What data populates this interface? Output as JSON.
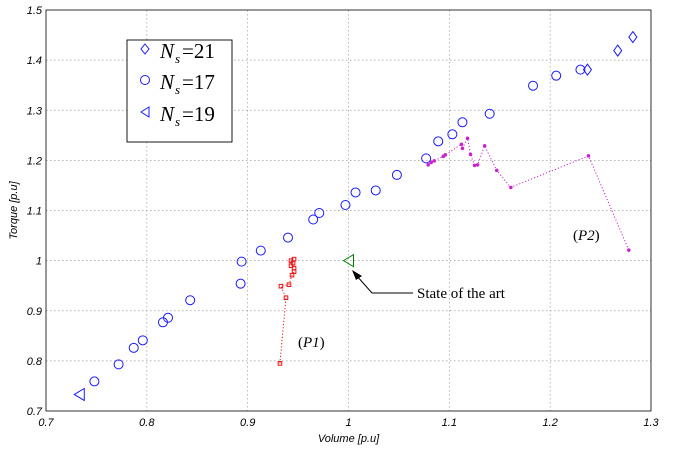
{
  "chart_data": {
    "type": "scatter",
    "xlabel": "Volume [p.u]",
    "ylabel": "Torque [p.u]",
    "xlim": [
      0.7,
      1.3
    ],
    "ylim": [
      0.7,
      1.5
    ],
    "xticks": [
      "0.7",
      "0.8",
      "0.9",
      "1",
      "1.1",
      "1.2",
      "1.3"
    ],
    "yticks": [
      "0.7",
      "0.8",
      "0.9",
      "1",
      "1.1",
      "1.2",
      "1.3",
      "1.4",
      "1.5"
    ],
    "grid": true,
    "legend": {
      "placement": "top-left",
      "entries": [
        {
          "marker": "diamond",
          "symbol": "N",
          "sub": "s",
          "rest": "=21"
        },
        {
          "marker": "circle",
          "symbol": "N",
          "sub": "s",
          "rest": "=17"
        },
        {
          "marker": "triangle-left",
          "symbol": "N",
          "sub": "s",
          "rest": "=19"
        }
      ]
    },
    "colors": {
      "blue": "#1a1aff",
      "red": "#ee1111",
      "magenta": "#cc22cc",
      "green": "#008000"
    },
    "series": [
      {
        "marker": "diamond",
        "color": "#1a1aff",
        "points": [
          [
            1.237,
            1.381
          ],
          [
            1.267,
            1.419
          ],
          [
            1.282,
            1.446
          ]
        ]
      },
      {
        "marker": "circle",
        "color": "#1a1aff",
        "points": [
          [
            0.748,
            0.759
          ],
          [
            0.772,
            0.793
          ],
          [
            0.787,
            0.826
          ],
          [
            0.796,
            0.841
          ],
          [
            0.816,
            0.877
          ],
          [
            0.821,
            0.886
          ],
          [
            0.843,
            0.921
          ],
          [
            0.893,
            0.954
          ],
          [
            0.894,
            0.998
          ],
          [
            0.913,
            1.02
          ],
          [
            0.94,
            1.046
          ],
          [
            0.965,
            1.082
          ],
          [
            0.971,
            1.095
          ],
          [
            0.997,
            1.111
          ],
          [
            1.007,
            1.136
          ],
          [
            1.027,
            1.14
          ],
          [
            1.048,
            1.171
          ],
          [
            1.077,
            1.204
          ],
          [
            1.089,
            1.238
          ],
          [
            1.103,
            1.252
          ],
          [
            1.113,
            1.276
          ],
          [
            1.14,
            1.293
          ],
          [
            1.183,
            1.349
          ],
          [
            1.206,
            1.369
          ],
          [
            1.23,
            1.381
          ]
        ]
      },
      {
        "marker": "triangle-left",
        "color": "#1a1aff",
        "points": [
          [
            0.733,
            0.733
          ]
        ]
      },
      {
        "marker": "triangle-left",
        "color": "#008000",
        "points": [
          [
            1.0,
            1.0
          ]
        ]
      },
      {
        "marker": "square-small",
        "color": "#ee1111",
        "line": "dotted",
        "points": [
          [
            0.932,
            0.795
          ],
          [
            0.938,
            0.926
          ],
          [
            0.933,
            0.949
          ],
          [
            0.941,
            0.952
          ],
          [
            0.944,
            0.971
          ],
          [
            0.946,
            0.978
          ],
          [
            0.946,
            0.985
          ],
          [
            0.943,
            0.99
          ],
          [
            0.945,
            0.995
          ],
          [
            0.943,
            1.0
          ],
          [
            0.946,
            1.003
          ]
        ]
      },
      {
        "marker": "dot",
        "color": "#cc22cc",
        "line": "dotted",
        "points": [
          [
            1.278,
            1.021
          ],
          [
            1.238,
            1.209
          ],
          [
            1.161,
            1.146
          ],
          [
            1.147,
            1.18
          ],
          [
            1.135,
            1.229
          ],
          [
            1.128,
            1.191
          ],
          [
            1.125,
            1.19
          ],
          [
            1.121,
            1.212
          ],
          [
            1.118,
            1.244
          ],
          [
            1.113,
            1.224
          ],
          [
            1.112,
            1.232
          ],
          [
            1.096,
            1.211
          ],
          [
            1.094,
            1.208
          ],
          [
            1.085,
            1.199
          ],
          [
            1.082,
            1.196
          ],
          [
            1.079,
            1.191
          ]
        ]
      }
    ],
    "annotations": [
      {
        "text": "State of the art",
        "target": [
          1.0,
          1.0
        ]
      },
      {
        "text": "(P1)",
        "label": "P1"
      },
      {
        "text": "(P2)",
        "label": "P2"
      }
    ]
  }
}
